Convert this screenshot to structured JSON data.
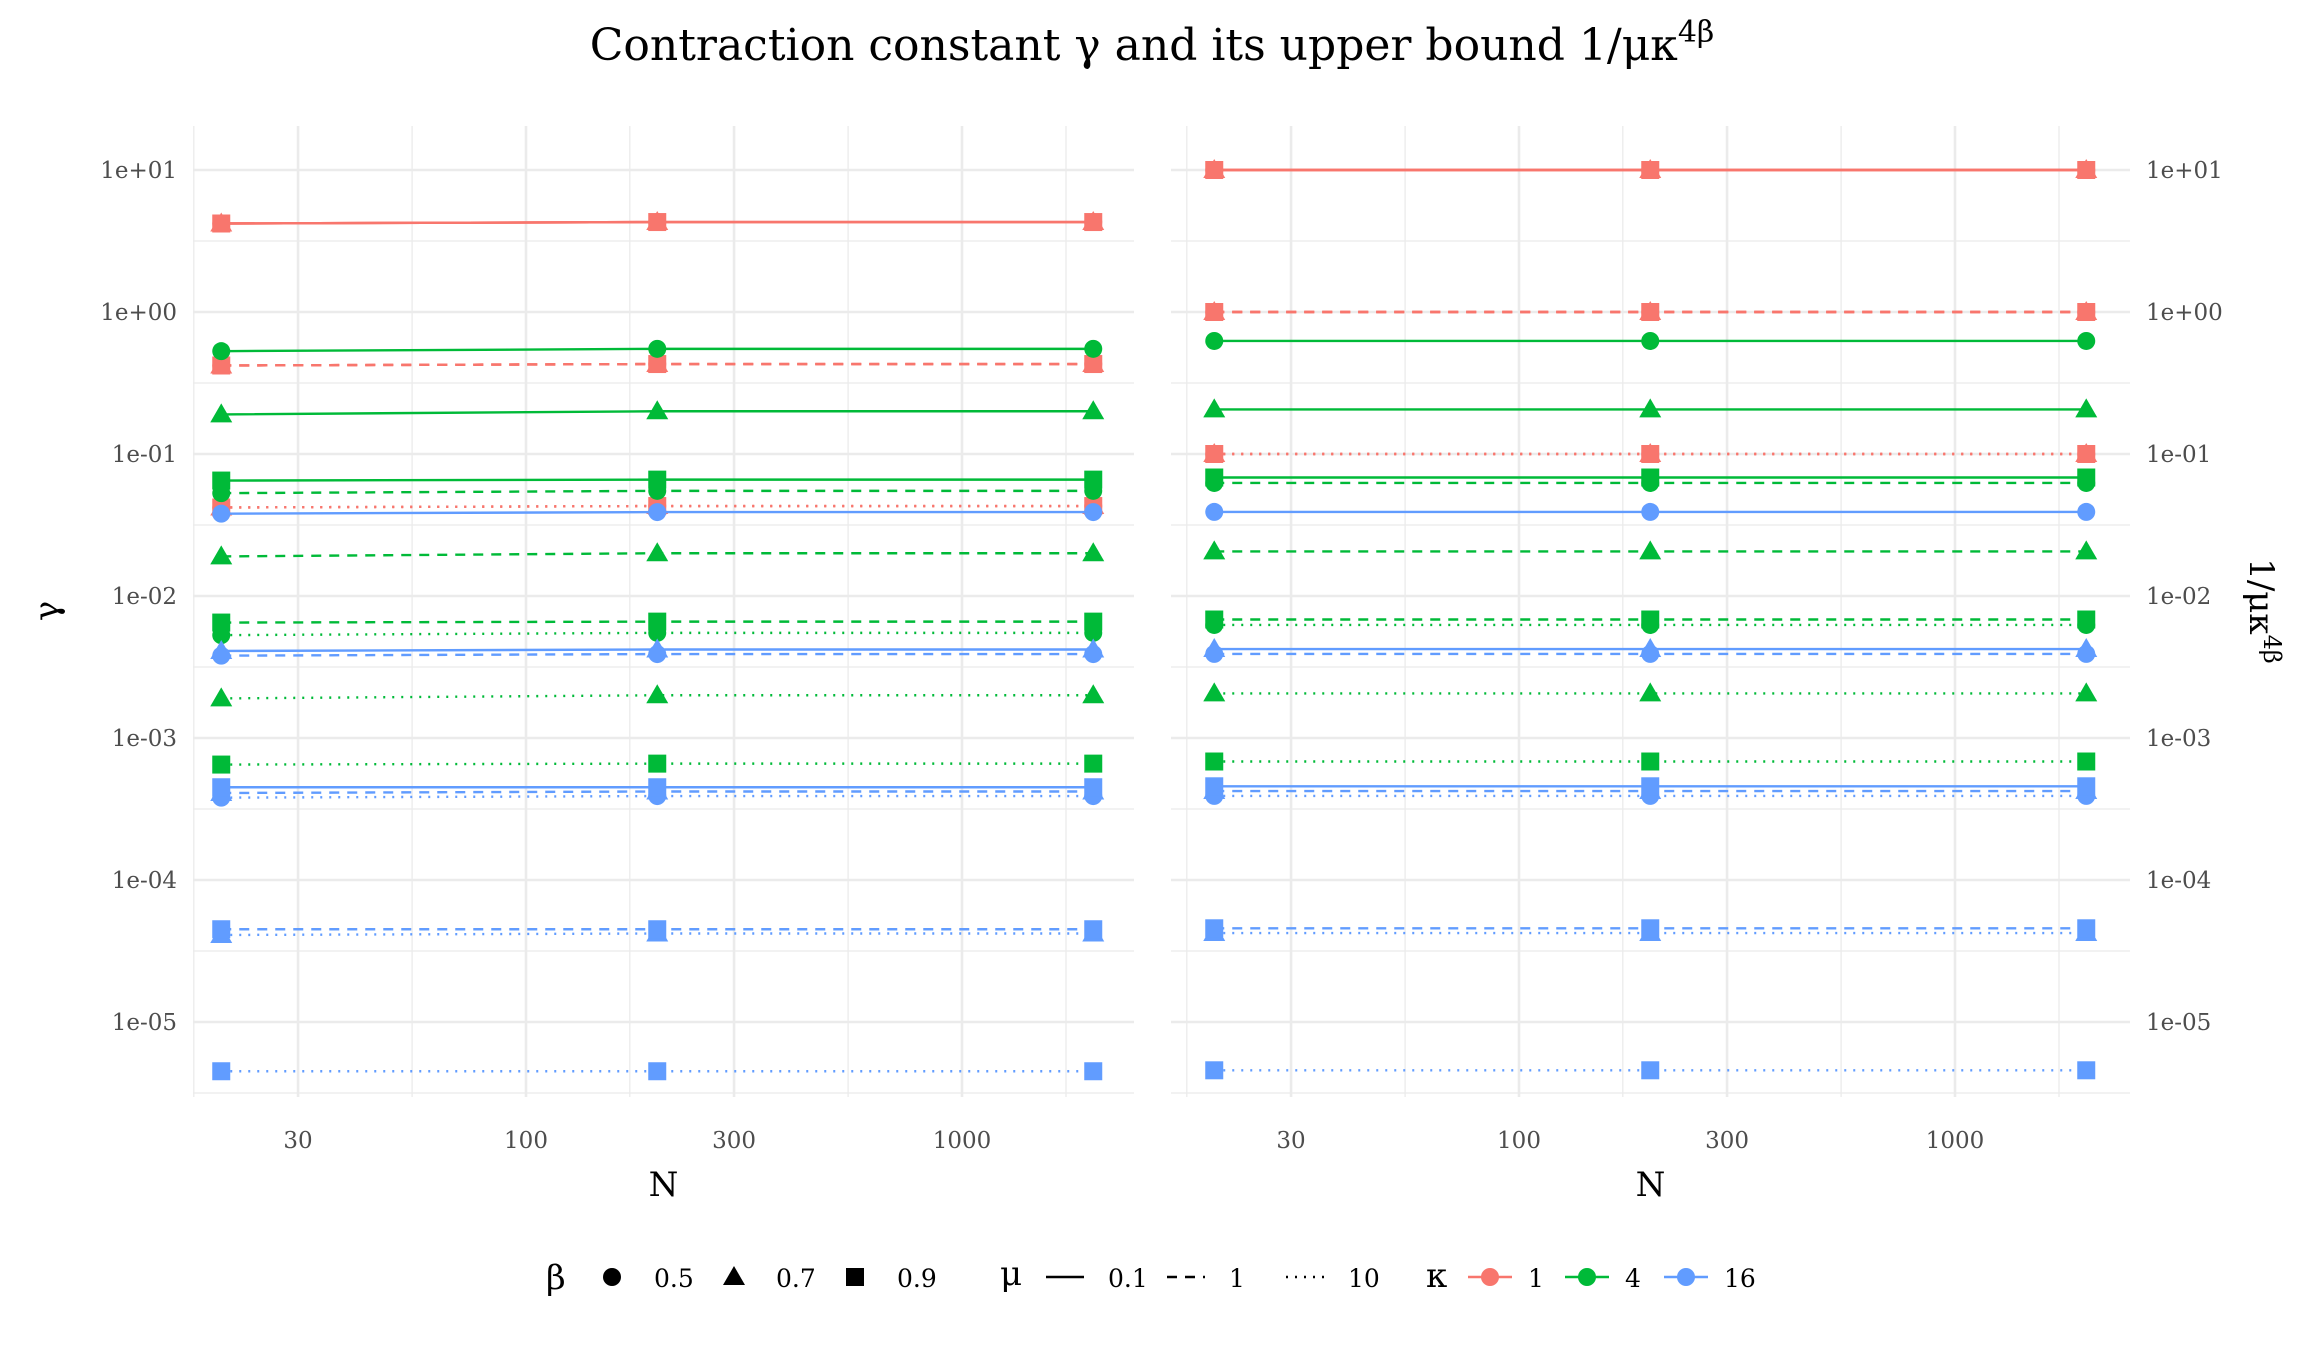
{
  "chart_data": {
    "type": "line",
    "title": "Contraction constant γ and its upper bound 1/μκ",
    "title_superscript": "4β",
    "colors": {
      "1": "#F8766D",
      "4": "#00BA38",
      "16": "#619CFF"
    },
    "linetypes": {
      "0.1": "solid",
      "1": "dashed",
      "10": "dotted"
    },
    "shapes": {
      "0.5": "circle",
      "0.7": "triangle",
      "0.9": "square"
    },
    "x": [
      20,
      200,
      2000
    ],
    "x_scale": "log",
    "x_ticks": [
      "30",
      "100",
      "300",
      "1000"
    ],
    "y_scale": "log",
    "y_ticks": [
      "1e+01",
      "1e+00",
      "1e-01",
      "1e-02",
      "1e-03",
      "1e-04",
      "1e-05"
    ],
    "grid": true,
    "legend": {
      "placement": "bottom",
      "beta": {
        "title": "β",
        "items": [
          "0.5",
          "0.7",
          "0.9"
        ]
      },
      "mu": {
        "title": "μ",
        "items": [
          "0.1",
          "1",
          "10"
        ]
      },
      "kappa": {
        "title": "κ",
        "items": [
          "1",
          "4",
          "16"
        ]
      }
    },
    "panels": [
      {
        "xlabel": "N",
        "ylabel": "γ",
        "ylabel_sup": "",
        "y_axis_side": "left",
        "series": [
          {
            "kappa": "1",
            "beta": "0.5",
            "mu": "0.1",
            "y": [
              4.2,
              4.3,
              4.3
            ]
          },
          {
            "kappa": "1",
            "beta": "0.7",
            "mu": "0.1",
            "y": [
              4.2,
              4.3,
              4.3
            ]
          },
          {
            "kappa": "1",
            "beta": "0.9",
            "mu": "0.1",
            "y": [
              4.2,
              4.3,
              4.3
            ]
          },
          {
            "kappa": "1",
            "beta": "0.5",
            "mu": "1",
            "y": [
              0.42,
              0.43,
              0.43
            ]
          },
          {
            "kappa": "1",
            "beta": "0.7",
            "mu": "1",
            "y": [
              0.42,
              0.43,
              0.43
            ]
          },
          {
            "kappa": "1",
            "beta": "0.9",
            "mu": "1",
            "y": [
              0.42,
              0.43,
              0.43
            ]
          },
          {
            "kappa": "1",
            "beta": "0.5",
            "mu": "10",
            "y": [
              0.042,
              0.043,
              0.043
            ]
          },
          {
            "kappa": "1",
            "beta": "0.7",
            "mu": "10",
            "y": [
              0.042,
              0.043,
              0.043
            ]
          },
          {
            "kappa": "1",
            "beta": "0.9",
            "mu": "10",
            "y": [
              0.042,
              0.043,
              0.043
            ]
          },
          {
            "kappa": "4",
            "beta": "0.5",
            "mu": "0.1",
            "y": [
              0.53,
              0.55,
              0.55
            ]
          },
          {
            "kappa": "4",
            "beta": "0.5",
            "mu": "1",
            "y": [
              0.053,
              0.055,
              0.055
            ]
          },
          {
            "kappa": "4",
            "beta": "0.5",
            "mu": "10",
            "y": [
              0.0053,
              0.0055,
              0.0055
            ]
          },
          {
            "kappa": "4",
            "beta": "0.7",
            "mu": "0.1",
            "y": [
              0.19,
              0.2,
              0.2
            ]
          },
          {
            "kappa": "4",
            "beta": "0.7",
            "mu": "1",
            "y": [
              0.019,
              0.02,
              0.02
            ]
          },
          {
            "kappa": "4",
            "beta": "0.7",
            "mu": "10",
            "y": [
              0.0019,
              0.002,
              0.002
            ]
          },
          {
            "kappa": "4",
            "beta": "0.9",
            "mu": "0.1",
            "y": [
              0.065,
              0.066,
              0.066
            ]
          },
          {
            "kappa": "4",
            "beta": "0.9",
            "mu": "1",
            "y": [
              0.0065,
              0.0066,
              0.0066
            ]
          },
          {
            "kappa": "4",
            "beta": "0.9",
            "mu": "10",
            "y": [
              0.00065,
              0.00066,
              0.00066
            ]
          },
          {
            "kappa": "16",
            "beta": "0.5",
            "mu": "0.1",
            "y": [
              0.038,
              0.039,
              0.039
            ]
          },
          {
            "kappa": "16",
            "beta": "0.5",
            "mu": "1",
            "y": [
              0.0038,
              0.0039,
              0.0039
            ]
          },
          {
            "kappa": "16",
            "beta": "0.5",
            "mu": "10",
            "y": [
              0.00038,
              0.00039,
              0.00039
            ]
          },
          {
            "kappa": "16",
            "beta": "0.7",
            "mu": "0.1",
            "y": [
              0.0041,
              0.0042,
              0.0042
            ]
          },
          {
            "kappa": "16",
            "beta": "0.7",
            "mu": "1",
            "y": [
              0.00041,
              0.00042,
              0.00042
            ]
          },
          {
            "kappa": "16",
            "beta": "0.7",
            "mu": "10",
            "y": [
              4.1e-05,
              4.2e-05,
              4.2e-05
            ]
          },
          {
            "kappa": "16",
            "beta": "0.9",
            "mu": "0.1",
            "y": [
              0.00045,
              0.00045,
              0.00045
            ]
          },
          {
            "kappa": "16",
            "beta": "0.9",
            "mu": "1",
            "y": [
              4.5e-05,
              4.5e-05,
              4.5e-05
            ]
          },
          {
            "kappa": "16",
            "beta": "0.9",
            "mu": "10",
            "y": [
              4.5e-06,
              4.5e-06,
              4.5e-06
            ]
          }
        ]
      },
      {
        "xlabel": "N",
        "ylabel": "1/μκ",
        "ylabel_sup": "4β",
        "y_axis_side": "right",
        "series": [
          {
            "kappa": "1",
            "beta": "0.5",
            "mu": "0.1",
            "y": [
              10,
              10,
              10
            ]
          },
          {
            "kappa": "1",
            "beta": "0.7",
            "mu": "0.1",
            "y": [
              10,
              10,
              10
            ]
          },
          {
            "kappa": "1",
            "beta": "0.9",
            "mu": "0.1",
            "y": [
              10,
              10,
              10
            ]
          },
          {
            "kappa": "1",
            "beta": "0.5",
            "mu": "1",
            "y": [
              1,
              1,
              1
            ]
          },
          {
            "kappa": "1",
            "beta": "0.7",
            "mu": "1",
            "y": [
              1,
              1,
              1
            ]
          },
          {
            "kappa": "1",
            "beta": "0.9",
            "mu": "1",
            "y": [
              1,
              1,
              1
            ]
          },
          {
            "kappa": "1",
            "beta": "0.5",
            "mu": "10",
            "y": [
              0.1,
              0.1,
              0.1
            ]
          },
          {
            "kappa": "1",
            "beta": "0.7",
            "mu": "10",
            "y": [
              0.1,
              0.1,
              0.1
            ]
          },
          {
            "kappa": "1",
            "beta": "0.9",
            "mu": "10",
            "y": [
              0.1,
              0.1,
              0.1
            ]
          },
          {
            "kappa": "4",
            "beta": "0.5",
            "mu": "0.1",
            "y": [
              0.625,
              0.625,
              0.625
            ]
          },
          {
            "kappa": "4",
            "beta": "0.5",
            "mu": "1",
            "y": [
              0.0625,
              0.0625,
              0.0625
            ]
          },
          {
            "kappa": "4",
            "beta": "0.5",
            "mu": "10",
            "y": [
              0.00625,
              0.00625,
              0.00625
            ]
          },
          {
            "kappa": "4",
            "beta": "0.7",
            "mu": "0.1",
            "y": [
              0.206,
              0.206,
              0.206
            ]
          },
          {
            "kappa": "4",
            "beta": "0.7",
            "mu": "1",
            "y": [
              0.0206,
              0.0206,
              0.0206
            ]
          },
          {
            "kappa": "4",
            "beta": "0.7",
            "mu": "10",
            "y": [
              0.00206,
              0.00206,
              0.00206
            ]
          },
          {
            "kappa": "4",
            "beta": "0.9",
            "mu": "0.1",
            "y": [
              0.0683,
              0.0683,
              0.0683
            ]
          },
          {
            "kappa": "4",
            "beta": "0.9",
            "mu": "1",
            "y": [
              0.00683,
              0.00683,
              0.00683
            ]
          },
          {
            "kappa": "4",
            "beta": "0.9",
            "mu": "10",
            "y": [
              0.000683,
              0.000683,
              0.000683
            ]
          },
          {
            "kappa": "16",
            "beta": "0.5",
            "mu": "0.1",
            "y": [
              0.0391,
              0.0391,
              0.0391
            ]
          },
          {
            "kappa": "16",
            "beta": "0.5",
            "mu": "1",
            "y": [
              0.00391,
              0.00391,
              0.00391
            ]
          },
          {
            "kappa": "16",
            "beta": "0.5",
            "mu": "10",
            "y": [
              0.000391,
              0.000391,
              0.000391
            ]
          },
          {
            "kappa": "16",
            "beta": "0.7",
            "mu": "0.1",
            "y": [
              0.00423,
              0.00423,
              0.00423
            ]
          },
          {
            "kappa": "16",
            "beta": "0.7",
            "mu": "1",
            "y": [
              0.000423,
              0.000423,
              0.000423
            ]
          },
          {
            "kappa": "16",
            "beta": "0.7",
            "mu": "10",
            "y": [
              4.23e-05,
              4.23e-05,
              4.23e-05
            ]
          },
          {
            "kappa": "16",
            "beta": "0.9",
            "mu": "0.1",
            "y": [
              0.000457,
              0.000457,
              0.000457
            ]
          },
          {
            "kappa": "16",
            "beta": "0.9",
            "mu": "1",
            "y": [
              4.57e-05,
              4.57e-05,
              4.57e-05
            ]
          },
          {
            "kappa": "16",
            "beta": "0.9",
            "mu": "10",
            "y": [
              4.57e-06,
              4.57e-06,
              4.57e-06
            ]
          }
        ]
      }
    ]
  }
}
